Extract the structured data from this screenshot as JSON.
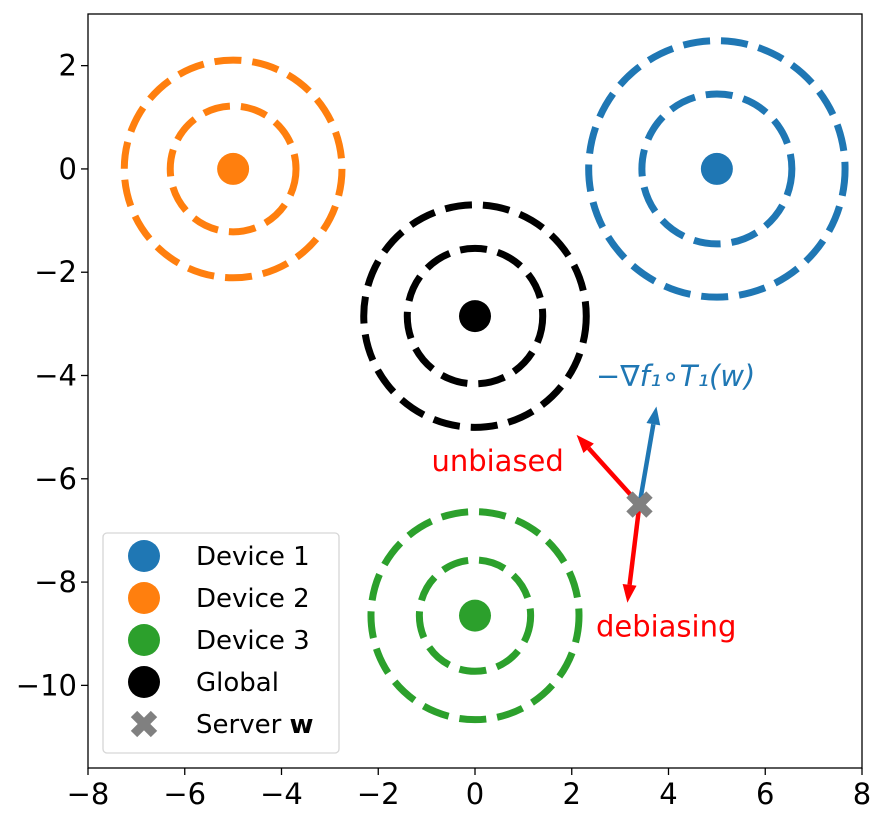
{
  "chart_data": {
    "type": "scatter",
    "xlim": [
      -8,
      8
    ],
    "ylim": [
      -11.6,
      3
    ],
    "x_ticks": [
      -8,
      -6,
      -4,
      -2,
      0,
      2,
      4,
      6,
      8
    ],
    "x_tick_labels": [
      "−8",
      "−6",
      "−4",
      "−2",
      "0",
      "2",
      "4",
      "6",
      "8"
    ],
    "y_ticks": [
      2,
      0,
      -2,
      -4,
      -6,
      -8,
      -10
    ],
    "y_tick_labels": [
      "2",
      "0",
      "−2",
      "−4",
      "−6",
      "−8",
      "−10"
    ],
    "grid": false,
    "legend_position": "bottom-left",
    "series": [
      {
        "name": "Device 1",
        "color": "#1f77b4",
        "marker": "circle",
        "x": 5,
        "y": 0,
        "ring_radii": [
          1.55,
          2.65
        ]
      },
      {
        "name": "Device 2",
        "color": "#ff7f0e",
        "marker": "circle",
        "x": -5,
        "y": 0,
        "ring_radii": [
          1.3,
          2.25
        ]
      },
      {
        "name": "Device 3",
        "color": "#2ca02c",
        "marker": "circle",
        "x": 0,
        "y": -8.65,
        "ring_radii": [
          1.15,
          2.15
        ]
      },
      {
        "name": "Global",
        "color": "#000000",
        "marker": "circle",
        "x": 0,
        "y": -2.85,
        "ring_radii": [
          1.4,
          2.3
        ]
      },
      {
        "name": "Server ",
        "name_bold": "w",
        "color": "#808080",
        "marker": "x",
        "x": 3.4,
        "y": -6.5
      }
    ],
    "arrows": [
      {
        "from": [
          3.4,
          -6.5
        ],
        "to": [
          3.75,
          -4.6
        ],
        "color": "#1f77b4",
        "label": "−∇f₁∘T₁(w)",
        "label_at": [
          2.5,
          -4.2
        ]
      },
      {
        "from": [
          3.4,
          -6.5
        ],
        "to": [
          2.1,
          -5.15
        ],
        "color": "#ff0000",
        "label": "unbiased",
        "label_at": [
          -0.9,
          -5.85
        ]
      },
      {
        "from": [
          3.4,
          -6.5
        ],
        "to": [
          3.15,
          -8.4
        ],
        "color": "#ff0000",
        "label": "debiasing",
        "label_at": [
          2.5,
          -9.05
        ]
      }
    ]
  }
}
